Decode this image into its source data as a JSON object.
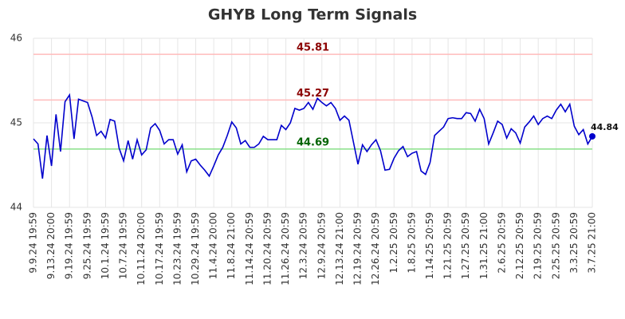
{
  "chart_data": {
    "type": "line",
    "title": "GHYB Long Term Signals",
    "categories": [
      "9.9.24 19:59",
      null,
      null,
      null,
      "9.13.24 20:00",
      null,
      null,
      null,
      "9.19.24 19:59",
      null,
      null,
      null,
      "9.25.24 19:59",
      null,
      null,
      null,
      "10.1.24 19:59",
      null,
      null,
      null,
      "10.7.24 19:59",
      null,
      null,
      null,
      "10.11.24 20:00",
      null,
      null,
      null,
      "10.17.24 19:59",
      null,
      null,
      null,
      "10.23.24 19:59",
      null,
      null,
      null,
      "10.29.24 19:59",
      null,
      null,
      null,
      "11.4.24 20:00",
      null,
      null,
      null,
      "11.8.24 21:00",
      null,
      null,
      null,
      "11.14.24 20:59",
      null,
      null,
      null,
      "11.20.24 20:59",
      null,
      null,
      null,
      "11.26.24 20:59",
      null,
      null,
      null,
      "12.3.24 20:59",
      null,
      null,
      null,
      "12.9.24 20:59",
      null,
      null,
      null,
      "12.13.24 21:00",
      null,
      null,
      null,
      "12.19.24 20:59",
      null,
      null,
      null,
      "12.26.24 20:59",
      null,
      null,
      null,
      "1.2.25 20:59",
      null,
      null,
      null,
      "1.8.25 20:59",
      null,
      null,
      null,
      "1.14.25 20:59",
      null,
      null,
      null,
      "1.21.25 20:59",
      null,
      null,
      null,
      "1.27.25 20:59",
      null,
      null,
      null,
      "1.31.25 21:00",
      null,
      null,
      null,
      "2.6.25 20:59",
      null,
      null,
      null,
      "2.12.25 20:59",
      null,
      null,
      null,
      "2.19.25 20:59",
      null,
      null,
      null,
      "2.25.25 20:59",
      null,
      null,
      null,
      "3.3.25 20:59",
      null,
      null,
      null,
      "3.7.25 21:00"
    ],
    "values": [
      44.81,
      44.75,
      44.34,
      44.85,
      44.49,
      45.1,
      44.66,
      45.25,
      45.33,
      44.81,
      45.28,
      45.26,
      45.24,
      45.07,
      44.85,
      44.9,
      44.82,
      45.04,
      45.02,
      44.7,
      44.55,
      44.79,
      44.57,
      44.8,
      44.62,
      44.68,
      44.94,
      44.99,
      44.91,
      44.75,
      44.8,
      44.8,
      44.63,
      44.74,
      44.42,
      44.55,
      44.57,
      44.5,
      44.44,
      44.37,
      44.49,
      44.62,
      44.71,
      44.85,
      45.01,
      44.94,
      44.75,
      44.79,
      44.71,
      44.71,
      44.75,
      44.84,
      44.8,
      44.8,
      44.8,
      44.97,
      44.92,
      45.0,
      45.17,
      45.15,
      45.17,
      45.24,
      45.16,
      45.29,
      45.24,
      45.2,
      45.24,
      45.17,
      45.03,
      45.08,
      45.03,
      44.77,
      44.51,
      44.74,
      44.66,
      44.74,
      44.8,
      44.67,
      44.44,
      44.45,
      44.58,
      44.67,
      44.72,
      44.6,
      44.64,
      44.66,
      44.43,
      44.39,
      44.53,
      44.85,
      44.9,
      44.95,
      45.05,
      45.06,
      45.05,
      45.05,
      45.12,
      45.11,
      45.02,
      45.16,
      45.05,
      44.75,
      44.88,
      45.02,
      44.98,
      44.82,
      44.93,
      44.88,
      44.76,
      44.95,
      45.01,
      45.08,
      44.98,
      45.05,
      45.08,
      45.05,
      45.15,
      45.22,
      45.13,
      45.22,
      44.96,
      44.86,
      44.92,
      44.75,
      44.84
    ],
    "color": "#0000cc",
    "hlines": [
      {
        "value": 45.81,
        "color": "#ffbbbb",
        "label_color": "#8b0000"
      },
      {
        "value": 45.27,
        "color": "#ffbbbb",
        "label_color": "#8b0000"
      },
      {
        "value": 44.69,
        "color": "#88e088",
        "label_color": "#006400"
      }
    ],
    "ylim": [
      44,
      46
    ],
    "yticks": [
      44,
      45,
      46
    ],
    "grid": true
  }
}
